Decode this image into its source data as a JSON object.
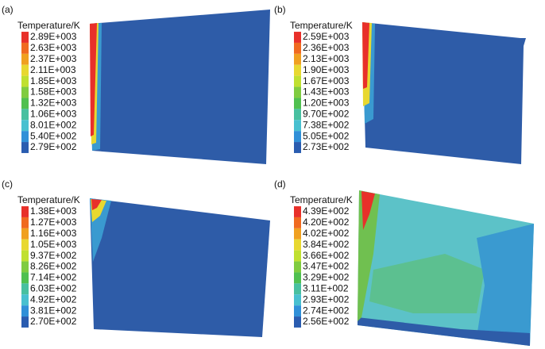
{
  "panels": [
    {
      "label": "(a)",
      "legend_title": "Temperature/K",
      "legend_labels": [
        "2.89E+003",
        "2.63E+003",
        "2.37E+003",
        "2.11E+003",
        "1.85E+003",
        "1.58E+003",
        "1.32E+003",
        "1.06E+003",
        "8.01E+002",
        "5.40E+002",
        "2.79E+002"
      ]
    },
    {
      "label": "(b)",
      "legend_title": "Temperature/K",
      "legend_labels": [
        "2.59E+003",
        "2.36E+003",
        "2.13E+003",
        "1.90E+003",
        "1.67E+003",
        "1.43E+003",
        "1.20E+003",
        "9.70E+002",
        "7.38E+002",
        "5.05E+002",
        "2.73E+002"
      ]
    },
    {
      "label": "(c)",
      "legend_title": "Temperature/K",
      "legend_labels": [
        "1.38E+003",
        "1.27E+003",
        "1.16E+003",
        "1.05E+003",
        "9.37E+002",
        "8.26E+002",
        "7.14E+002",
        "6.03E+002",
        "4.92E+002",
        "3.81E+002",
        "2.70E+002"
      ]
    },
    {
      "label": "(d)",
      "legend_title": "Temperature/K",
      "legend_labels": [
        "4.39E+002",
        "4.20E+002",
        "4.02E+002",
        "3.84E+002",
        "3.66E+002",
        "3.47E+002",
        "3.29E+002",
        "3.11E+002",
        "2.93E+002",
        "2.74E+002",
        "2.56E+002"
      ]
    }
  ]
}
